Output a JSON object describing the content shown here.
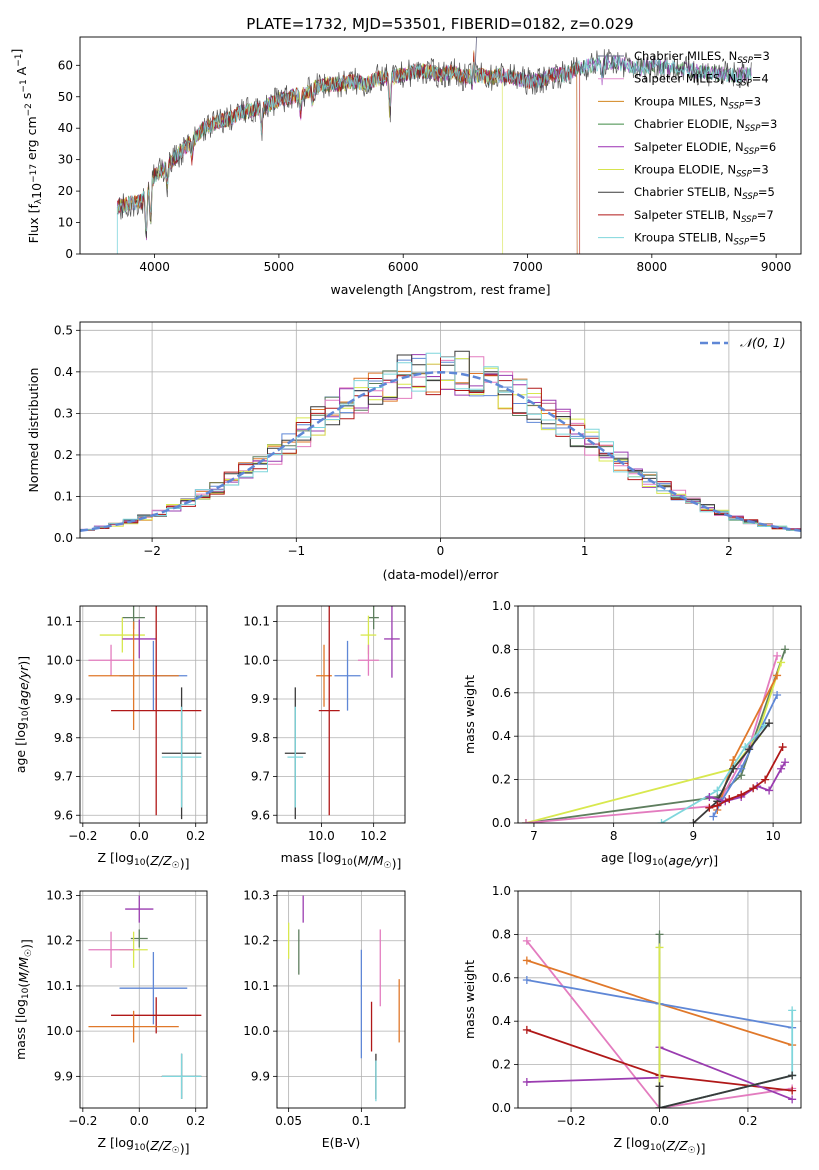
{
  "figure": {
    "title": "PLATE=1732, MJD=53501, FIBERID=0182, z=0.029"
  },
  "colors": {
    "chabrier_miles": "#6b6b8a",
    "salpeter_miles": "#e58fcf",
    "kroupa_miles": "#d2861f",
    "chabrier_elodie": "#3f8a44",
    "salpeter_elodie": "#9a2fb4",
    "kroupa_elodie": "#d6e34d",
    "chabrier_stelib": "#3a3a3a",
    "salpeter_stelib": "#b01818",
    "kroupa_stelib": "#7fd6dc",
    "blue": "#5f87d6",
    "orange": "#e0782a",
    "green": "#5e7e5e",
    "pink": "#e37cbf",
    "purple": "#9a3cb0",
    "yellow": "#d8e84e",
    "red": "#b01818",
    "cyan": "#7fd6dc",
    "normal_curve": "#5f87d6"
  },
  "chart_data": [
    {
      "id": "spectrum",
      "type": "line",
      "xlabel": "wavelength [Angstrom, rest frame]",
      "ylabel": "Flux [f_λ 10^-17 erg cm^-2 s^-1 A^-1]",
      "xlim": [
        3400,
        9200
      ],
      "ylim": [
        0,
        69
      ],
      "xticks": [
        4000,
        5000,
        6000,
        7000,
        8000,
        9000
      ],
      "yticks": [
        0,
        10,
        20,
        30,
        40,
        50,
        60
      ],
      "grid": false,
      "legend_position": "top-right",
      "series": [
        {
          "name": "Chabrier MILES, N_SSP=3",
          "color_key": "chabrier_miles"
        },
        {
          "name": "Salpeter MILES, N_SSP=4",
          "color_key": "salpeter_miles"
        },
        {
          "name": "Kroupa MILES, N_SSP=3",
          "color_key": "kroupa_miles"
        },
        {
          "name": "Chabrier ELODIE, N_SSP=3",
          "color_key": "chabrier_elodie"
        },
        {
          "name": "Salpeter ELODIE, N_SSP=6",
          "color_key": "salpeter_elodie"
        },
        {
          "name": "Kroupa ELODIE, N_SSP=3",
          "color_key": "kroupa_elodie"
        },
        {
          "name": "Chabrier STELIB, N_SSP=5",
          "color_key": "chabrier_stelib"
        },
        {
          "name": "Salpeter STELIB, N_SSP=7",
          "color_key": "salpeter_stelib"
        },
        {
          "name": "Kroupa STELIB, N_SSP=5",
          "color_key": "kroupa_stelib"
        }
      ],
      "continuum": {
        "x": [
          3700,
          3800,
          3900,
          4000,
          4100,
          4200,
          4300,
          4400,
          4500,
          4600,
          4700,
          4800,
          4900,
          5000,
          5100,
          5200,
          5300,
          5400,
          5500,
          5600,
          5700,
          5800,
          5900,
          6000,
          6100,
          6200,
          6300,
          6400,
          6500,
          6600,
          6700,
          6800,
          6900,
          7000,
          7100,
          7200,
          7300,
          7400,
          7500,
          7600,
          7700,
          7800,
          7900,
          8000,
          8200,
          8400,
          8600,
          8800
        ],
        "y": [
          15,
          16,
          17,
          25,
          28,
          32,
          36,
          40,
          42,
          43,
          45,
          46,
          47,
          49,
          50,
          51,
          53,
          54,
          54,
          55,
          54,
          56,
          56,
          57,
          58,
          58,
          57,
          58,
          56,
          57,
          56,
          57,
          56,
          55,
          55,
          57,
          57,
          59,
          60,
          61,
          61,
          60,
          59,
          60,
          59,
          58,
          57,
          57
        ]
      },
      "spectral_range_ends": {
        "Chabrier MILES": 7400,
        "Salpeter MILES": 7400,
        "Kroupa MILES": 7400,
        "Kroupa ELODIE": 6800,
        "Salpeter STELIB": 7420
      }
    },
    {
      "id": "residual_histogram",
      "type": "line",
      "xlabel": "(data-model)/error",
      "ylabel": "Normed distribution",
      "xlim": [
        -2.5,
        2.5
      ],
      "ylim": [
        0,
        0.52
      ],
      "xticks": [
        -2,
        -1,
        0,
        1,
        2
      ],
      "yticks": [
        0.0,
        0.1,
        0.2,
        0.3,
        0.4,
        0.5
      ],
      "grid": true,
      "legend_position": "top-right",
      "legend_label": "𝒩(0, 1)",
      "bin_width": 0.1,
      "hist_colors": [
        "blue",
        "orange",
        "green",
        "pink",
        "purple",
        "yellow",
        "chabrier_stelib",
        "red",
        "cyan"
      ]
    },
    {
      "id": "age_vs_Z",
      "type": "scatter",
      "xlabel": "Z [log10(Z/Z☉)]",
      "ylabel": "age  [log10(age/yr)]",
      "xlim": [
        -0.21,
        0.24
      ],
      "ylim": [
        9.58,
        10.14
      ],
      "xticks": [
        -0.2,
        0.0,
        0.2
      ],
      "yticks": [
        9.6,
        9.7,
        9.8,
        9.9,
        10.0,
        10.1
      ],
      "grid": true,
      "points": [
        {
          "color": "green",
          "x": -0.02,
          "y": 10.11,
          "xerr": 0.04,
          "yerr": 0.03
        },
        {
          "color": "yellow",
          "x": -0.06,
          "y": 10.065,
          "xerr": 0.08,
          "yerr": 0.045
        },
        {
          "color": "purple",
          "x": 0.0,
          "y": 10.055,
          "xerr": 0.06,
          "yerr": 0.05
        },
        {
          "color": "pink",
          "x": -0.1,
          "y": 10.0,
          "xerr": 0.08,
          "yerr": 0.04
        },
        {
          "color": "blue",
          "x": 0.05,
          "y": 9.96,
          "xerr": 0.12,
          "yerr": 0.09
        },
        {
          "color": "orange",
          "x": -0.02,
          "y": 9.96,
          "xerr": 0.16,
          "yerr": 0.14
        },
        {
          "color": "red",
          "x": 0.06,
          "y": 9.87,
          "xerr": 0.16,
          "yerr": 0.27
        },
        {
          "color": "chabrier_stelib",
          "x": 0.15,
          "y": 9.76,
          "xerr": 0.07,
          "yerr": 0.17
        },
        {
          "color": "cyan",
          "x": 0.15,
          "y": 9.75,
          "xerr": 0.07,
          "yerr": 0.13
        }
      ]
    },
    {
      "id": "age_vs_mass",
      "type": "scatter",
      "xlabel": "mass [log10(M/M☉)]",
      "ylabel": "",
      "xlim": [
        9.83,
        10.32
      ],
      "ylim": [
        9.58,
        10.14
      ],
      "xticks": [
        10.0,
        10.2
      ],
      "yticks": [
        9.6,
        9.7,
        9.8,
        9.9,
        10.0,
        10.1
      ],
      "grid": true,
      "points": [
        {
          "color": "green",
          "x": 10.2,
          "y": 10.11,
          "xerr": 0.02,
          "yerr": 0.03
        },
        {
          "color": "yellow",
          "x": 10.18,
          "y": 10.065,
          "xerr": 0.03,
          "yerr": 0.05
        },
        {
          "color": "purple",
          "x": 10.27,
          "y": 10.055,
          "xerr": 0.03,
          "yerr": 0.1
        },
        {
          "color": "pink",
          "x": 10.18,
          "y": 10.0,
          "xerr": 0.04,
          "yerr": 0.04
        },
        {
          "color": "blue",
          "x": 10.1,
          "y": 9.96,
          "xerr": 0.05,
          "yerr": 0.09
        },
        {
          "color": "orange",
          "x": 10.01,
          "y": 9.96,
          "xerr": 0.03,
          "yerr": 0.08
        },
        {
          "color": "red",
          "x": 10.03,
          "y": 9.87,
          "xerr": 0.04,
          "yerr": 0.27
        },
        {
          "color": "chabrier_stelib",
          "x": 9.9,
          "y": 9.76,
          "xerr": 0.04,
          "yerr": 0.17
        },
        {
          "color": "cyan",
          "x": 9.9,
          "y": 9.75,
          "xerr": 0.03,
          "yerr": 0.13
        }
      ]
    },
    {
      "id": "massweight_vs_age",
      "type": "line",
      "xlabel": "age  [log10(age/yr)]",
      "ylabel": "mass weight",
      "xlim": [
        6.8,
        10.35
      ],
      "ylim": [
        0,
        1.0
      ],
      "xticks": [
        7,
        8,
        9,
        10
      ],
      "yticks": [
        0.0,
        0.2,
        0.4,
        0.6,
        0.8,
        1.0
      ],
      "grid": true,
      "series": [
        {
          "color": "green",
          "x": [
            6.9,
            9.3,
            9.6,
            10.15
          ],
          "y": [
            0.0,
            0.12,
            0.22,
            0.8
          ]
        },
        {
          "color": "yellow",
          "x": [
            6.9,
            9.5,
            9.8,
            10.1
          ],
          "y": [
            0.0,
            0.25,
            0.4,
            0.74
          ]
        },
        {
          "color": "pink",
          "x": [
            6.9,
            9.3,
            9.7,
            10.05
          ],
          "y": [
            0.0,
            0.08,
            0.35,
            0.77
          ]
        },
        {
          "color": "orange",
          "x": [
            9.3,
            9.5,
            10.05
          ],
          "y": [
            0.06,
            0.29,
            0.68
          ]
        },
        {
          "color": "blue",
          "x": [
            9.25,
            9.35,
            9.6,
            10.05
          ],
          "y": [
            0.03,
            0.1,
            0.25,
            0.59
          ]
        },
        {
          "color": "cyan",
          "x": [
            8.6,
            9.3,
            9.65,
            9.9
          ],
          "y": [
            0.0,
            0.15,
            0.35,
            0.45
          ]
        },
        {
          "color": "chabrier_stelib",
          "x": [
            9.0,
            9.3,
            9.5,
            9.7,
            9.95
          ],
          "y": [
            0.0,
            0.1,
            0.25,
            0.34,
            0.46
          ]
        },
        {
          "color": "purple",
          "x": [
            9.2,
            9.4,
            9.6,
            9.8,
            9.95,
            10.1,
            10.15
          ],
          "y": [
            0.12,
            0.1,
            0.12,
            0.17,
            0.15,
            0.25,
            0.28
          ]
        },
        {
          "color": "red",
          "x": [
            9.2,
            9.3,
            9.45,
            9.6,
            9.75,
            9.9,
            10.12
          ],
          "y": [
            0.07,
            0.08,
            0.11,
            0.13,
            0.16,
            0.2,
            0.35
          ]
        }
      ]
    },
    {
      "id": "mass_vs_Z",
      "type": "scatter",
      "xlabel": "Z [log10(Z/Z☉)]",
      "ylabel": "mass [log10(M/M☉)]",
      "xlim": [
        -0.21,
        0.24
      ],
      "ylim": [
        9.83,
        10.31
      ],
      "xticks": [
        -0.2,
        0.0,
        0.2
      ],
      "yticks": [
        9.9,
        10.0,
        10.1,
        10.2,
        10.3
      ],
      "grid": true,
      "points": [
        {
          "color": "purple",
          "x": 0.0,
          "y": 10.27,
          "xerr": 0.05,
          "yerr": 0.03
        },
        {
          "color": "green",
          "x": 0.0,
          "y": 10.205,
          "xerr": 0.03,
          "yerr": 0.02
        },
        {
          "color": "yellow",
          "x": -0.02,
          "y": 10.18,
          "xerr": 0.05,
          "yerr": 0.04
        },
        {
          "color": "pink",
          "x": -0.1,
          "y": 10.18,
          "xerr": 0.08,
          "yerr": 0.04
        },
        {
          "color": "blue",
          "x": 0.05,
          "y": 10.095,
          "xerr": 0.12,
          "yerr": 0.08
        },
        {
          "color": "red",
          "x": 0.06,
          "y": 10.035,
          "xerr": 0.16,
          "yerr": 0.04
        },
        {
          "color": "orange",
          "x": -0.02,
          "y": 10.01,
          "xerr": 0.16,
          "yerr": 0.035
        },
        {
          "color": "chabrier_stelib",
          "x": 0.15,
          "y": 9.9,
          "xerr": 0.07,
          "yerr": 0.05
        },
        {
          "color": "cyan",
          "x": 0.15,
          "y": 9.9,
          "xerr": 0.07,
          "yerr": 0.05
        }
      ]
    },
    {
      "id": "mass_vs_EBV",
      "type": "scatter",
      "xlabel": "E(B-V)",
      "ylabel": "",
      "xlim": [
        0.042,
        0.13
      ],
      "ylim": [
        9.83,
        10.31
      ],
      "xticks": [
        0.05,
        0.1
      ],
      "yticks": [
        9.9,
        10.0,
        10.1,
        10.2,
        10.3
      ],
      "grid": true,
      "points": [
        {
          "color": "purple",
          "x": 0.06,
          "y": 10.27,
          "xerr": 0,
          "yerr": 0.03
        },
        {
          "color": "green",
          "x": 0.057,
          "y": 10.175,
          "xerr": 0,
          "yerr": 0.05
        },
        {
          "color": "yellow",
          "x": 0.05,
          "y": 10.2,
          "xerr": 0,
          "yerr": 0.04
        },
        {
          "color": "pink",
          "x": 0.113,
          "y": 10.14,
          "xerr": 0,
          "yerr": 0.085
        },
        {
          "color": "blue",
          "x": 0.1,
          "y": 10.06,
          "xerr": 0,
          "yerr": 0.12
        },
        {
          "color": "red",
          "x": 0.107,
          "y": 10.01,
          "xerr": 0,
          "yerr": 0.055
        },
        {
          "color": "orange",
          "x": 0.126,
          "y": 10.045,
          "xerr": 0,
          "yerr": 0.07
        },
        {
          "color": "chabrier_stelib",
          "x": 0.11,
          "y": 9.9,
          "xerr": 0,
          "yerr": 0.05
        },
        {
          "color": "cyan",
          "x": 0.11,
          "y": 9.89,
          "xerr": 0,
          "yerr": 0.045
        }
      ]
    },
    {
      "id": "massweight_vs_Z",
      "type": "line",
      "xlabel": "Z [log10(Z/Z☉)]",
      "ylabel": "mass weight",
      "xlim": [
        -0.32,
        0.32
      ],
      "ylim": [
        0,
        1.0
      ],
      "xticks": [
        -0.2,
        0.0,
        0.2
      ],
      "yticks": [
        0.0,
        0.2,
        0.4,
        0.6,
        0.8,
        1.0
      ],
      "grid": true,
      "series": [
        {
          "color": "pink",
          "x": [
            -0.3,
            0.0,
            0.3
          ],
          "y": [
            0.77,
            0.0,
            0.09
          ]
        },
        {
          "color": "orange",
          "x": [
            -0.3,
            0.0,
            0.3
          ],
          "y": [
            0.68,
            0.48,
            0.29
          ]
        },
        {
          "color": "blue",
          "x": [
            -0.3,
            0.0,
            0.3
          ],
          "y": [
            0.59,
            0.48,
            0.37
          ]
        },
        {
          "color": "red",
          "x": [
            -0.3,
            0.0,
            0.3
          ],
          "y": [
            0.36,
            0.15,
            0.08
          ]
        },
        {
          "color": "purple",
          "x": [
            -0.3,
            0.0,
            0.0,
            0.3
          ],
          "y": [
            0.12,
            0.14,
            0.28,
            0.04
          ]
        },
        {
          "color": "green",
          "x": [
            0.0,
            0.0,
            0.3
          ],
          "y": [
            0.8,
            0.0,
            0.15
          ]
        },
        {
          "color": "yellow",
          "x": [
            0.0,
            0.0
          ],
          "y": [
            0.74,
            0.0
          ]
        },
        {
          "color": "cyan",
          "x": [
            0.0,
            0.3,
            0.3
          ],
          "y": [
            0.0,
            0.15,
            0.45
          ]
        },
        {
          "color": "chabrier_stelib",
          "x": [
            0.0,
            0.0,
            0.3
          ],
          "y": [
            0.1,
            0.0,
            0.15
          ]
        }
      ]
    }
  ]
}
